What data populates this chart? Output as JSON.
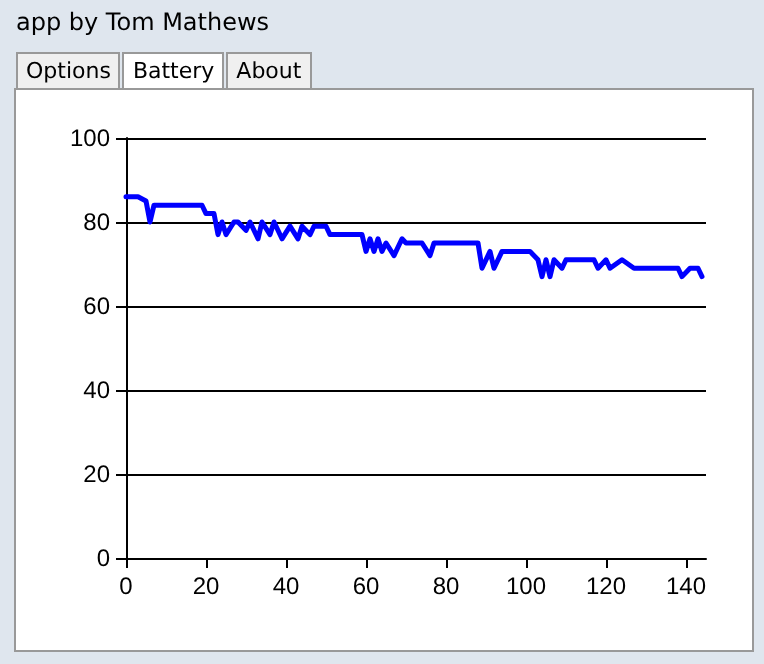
{
  "chart_data": {
    "type": "line",
    "title": "app by Tom Mathews",
    "annotations": [
      "Options",
      "Battery",
      "About"
    ],
    "x": [
      0,
      3,
      5,
      6,
      7,
      19,
      20,
      22,
      23,
      24,
      25,
      27,
      28,
      30,
      31,
      33,
      34,
      36,
      37,
      39,
      41,
      43,
      44,
      46,
      47,
      50,
      51,
      59,
      60,
      61,
      62,
      63,
      64,
      65,
      67,
      69,
      70,
      74,
      76,
      77,
      88,
      89,
      91,
      92,
      94,
      101,
      103,
      104,
      105,
      106,
      107,
      109,
      110,
      112,
      117,
      118,
      120,
      121,
      124,
      127,
      138,
      139,
      141,
      143,
      144
    ],
    "series": [
      {
        "color": "#0000ff",
        "values": [
          86,
          86,
          85,
          80,
          84,
          84,
          82,
          82,
          77,
          80,
          77,
          80,
          80,
          78,
          80,
          76,
          80,
          77,
          80,
          76,
          79,
          76,
          79,
          77,
          79,
          79,
          77,
          77,
          73,
          76,
          73,
          76,
          73,
          75,
          72,
          76,
          75,
          75,
          72,
          75,
          75,
          69,
          73,
          69,
          73,
          73,
          71,
          67,
          71,
          67,
          71,
          69,
          71,
          71,
          71,
          69,
          71,
          69,
          71,
          69,
          69,
          67,
          69,
          69,
          67
        ]
      }
    ],
    "xlim": [
      0,
      145
    ],
    "xticks": [
      0,
      20,
      40,
      60,
      80,
      100,
      120,
      140
    ],
    "ylim": [
      0,
      100
    ],
    "yticks": [
      0,
      20,
      40,
      60,
      80,
      100
    ],
    "grid": "y",
    "marker": "none",
    "line_style": "solid"
  }
}
